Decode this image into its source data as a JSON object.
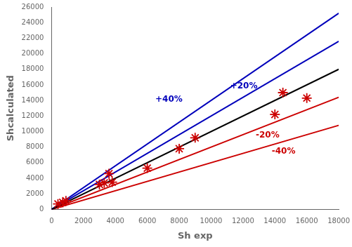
{
  "chart_data": {
    "type": "scatter",
    "xlabel": "Sh exp",
    "ylabel": "Shcalculated",
    "xlim": [
      0,
      18000
    ],
    "ylim": [
      0,
      26000
    ],
    "xticks": [
      0,
      2000,
      4000,
      6000,
      8000,
      10000,
      12000,
      14000,
      16000,
      18000
    ],
    "yticks": [
      0,
      2000,
      4000,
      6000,
      8000,
      10000,
      12000,
      14000,
      16000,
      18000,
      20000,
      22000,
      24000,
      26000
    ],
    "grid": false,
    "series": [
      {
        "type": "line",
        "color": "#000000",
        "x": [
          0,
          18000
        ],
        "values": [
          0,
          18000
        ]
      },
      {
        "type": "line",
        "color": "#0000bb",
        "x": [
          0,
          18000
        ],
        "values": [
          0,
          21600
        ]
      },
      {
        "type": "line",
        "color": "#0000bb",
        "x": [
          0,
          18000
        ],
        "values": [
          0,
          25200
        ]
      },
      {
        "type": "line",
        "color": "#cc0000",
        "x": [
          0,
          18000
        ],
        "values": [
          0,
          14400
        ]
      },
      {
        "type": "line",
        "color": "#cc0000",
        "x": [
          0,
          18000
        ],
        "values": [
          0,
          10800
        ]
      },
      {
        "type": "scatter",
        "marker": "star",
        "color": "#cc0000",
        "x": [
          400,
          700,
          900,
          3000,
          3300,
          3600,
          3800,
          6000,
          8000,
          9000,
          14000,
          14500,
          16000
        ],
        "values": [
          700,
          900,
          1100,
          3200,
          3400,
          4600,
          3500,
          5300,
          7800,
          9200,
          12200,
          15000,
          14300
        ]
      }
    ],
    "annotations": [
      {
        "text": "+20%",
        "x": 11200,
        "y": 15500,
        "color": "#0000bb"
      },
      {
        "text": "+40%",
        "x": 6500,
        "y": 13800,
        "color": "#0000bb"
      },
      {
        "text": "-20%",
        "x": 12800,
        "y": 9200,
        "color": "#cc0000"
      },
      {
        "text": "-40%",
        "x": 13800,
        "y": 7200,
        "color": "#cc0000"
      }
    ]
  }
}
